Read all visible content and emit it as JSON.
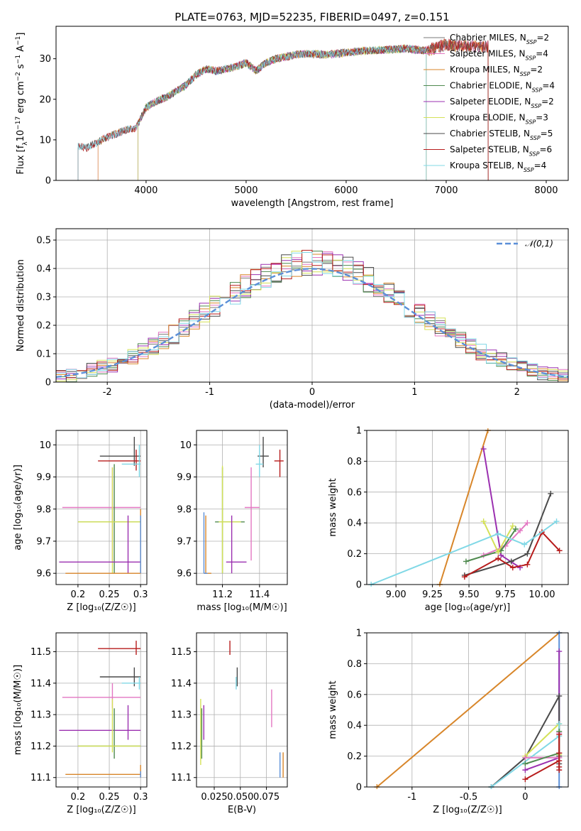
{
  "chart_data": [
    {
      "id": "spectrum",
      "type": "line",
      "title": "PLATE=0763, MJD=52235, FIBERID=0497, z=0.151",
      "xlabel": "wavelength [Angstrom, rest frame]",
      "ylabel": "Flux [f_λ10^{-17} erg cm^{-2} s^{-1} A^{-1}]",
      "xlim": [
        3100,
        8220
      ],
      "ylim": [
        0,
        38
      ],
      "xticks": [
        4000,
        5000,
        6000,
        7000,
        8000
      ],
      "yticks": [
        0,
        10,
        20,
        30
      ],
      "grid": false,
      "legend_position": "top-right",
      "series": [
        {
          "name": "Chabrier MILES, N_SSP=2",
          "color": "#7a7a7a",
          "marker": "+",
          "range": [
            3320,
            7420
          ]
        },
        {
          "name": "Salpeter MILES, N_SSP=4",
          "color": "#e377c2",
          "marker": "+",
          "range": [
            3520,
            7420
          ]
        },
        {
          "name": "Kroupa MILES, N_SSP=2",
          "color": "#d8862a",
          "range": [
            3520,
            7420
          ]
        },
        {
          "name": "Chabrier ELODIE, N_SSP=4",
          "color": "#4f8a4f",
          "range": [
            3920,
            6800
          ]
        },
        {
          "name": "Salpeter ELODIE, N_SSP=2",
          "color": "#9b30b0",
          "range": [
            3920,
            6800
          ]
        },
        {
          "name": "Kroupa ELODIE, N_SSP=3",
          "color": "#d4e157",
          "range": [
            3920,
            6800
          ]
        },
        {
          "name": "Chabrier STELIB, N_SSP=5",
          "color": "#4a4a4a",
          "range": [
            3320,
            7420
          ]
        },
        {
          "name": "Salpeter STELIB, N_SSP=6",
          "color": "#b71c1c",
          "range": [
            3320,
            7420
          ]
        },
        {
          "name": "Kroupa STELIB, N_SSP=4",
          "color": "#80d8e6",
          "range": [
            3320,
            6800
          ]
        }
      ],
      "continuum_key_points": {
        "x": [
          3300,
          3400,
          3500,
          3600,
          3700,
          3800,
          3900,
          3950,
          4000,
          4100,
          4200,
          4300,
          4400,
          4500,
          4600,
          4700,
          4800,
          4900,
          5000,
          5100,
          5200,
          5300,
          5400,
          5500,
          5600,
          5800,
          6000,
          6200,
          6400,
          6600,
          6800,
          7000,
          7200,
          7400,
          7600,
          7800,
          8000
        ],
        "y": [
          8.5,
          8.0,
          9.2,
          10.5,
          11.5,
          12.5,
          13.0,
          15.5,
          18.0,
          19.5,
          20.5,
          22.0,
          23.5,
          26.0,
          27.5,
          27.0,
          27.5,
          28.0,
          29.0,
          27.0,
          29.0,
          30.0,
          30.5,
          31.0,
          31.2,
          31.0,
          31.5,
          32.0,
          32.2,
          32.5,
          32.0,
          33.5,
          33.0,
          33.0,
          32.5,
          31.5,
          30.5
        ]
      }
    },
    {
      "id": "residuals",
      "type": "step",
      "xlabel": "(data-model)/error",
      "ylabel": "Normed distribution",
      "xlim": [
        -2.5,
        2.5
      ],
      "ylim": [
        0,
        0.54
      ],
      "xticks": [
        -2,
        -1,
        0,
        1,
        2
      ],
      "yticks": [
        0.0,
        0.1,
        0.2,
        0.3,
        0.4,
        0.5
      ],
      "grid": true,
      "legend_position": "top-right",
      "reference_curve": {
        "name": "𝒩(0,1)",
        "color": "#5b8fd8",
        "style": "dashed"
      },
      "bin_edges": [
        -2.5,
        -2.4,
        -2.3,
        -2.2,
        -2.1,
        -2.0,
        -1.9,
        -1.8,
        -1.7,
        -1.6,
        -1.5,
        -1.4,
        -1.3,
        -1.2,
        -1.1,
        -1.0,
        -0.9,
        -0.8,
        -0.7,
        -0.6,
        -0.5,
        -0.4,
        -0.3,
        -0.2,
        -0.1,
        0.0,
        0.1,
        0.2,
        0.3,
        0.4,
        0.5,
        0.6,
        0.7,
        0.8,
        0.9,
        1.0,
        1.1,
        1.2,
        1.3,
        1.4,
        1.5,
        1.6,
        1.7,
        1.8,
        1.9,
        2.0,
        2.1,
        2.2,
        2.3,
        2.4,
        2.5
      ],
      "jitter_seeds": [
        1,
        2,
        3,
        4,
        5,
        6,
        7,
        8,
        9
      ]
    },
    {
      "id": "Z-age",
      "type": "errorbar",
      "xlabel": "Z [log₁₀(Z/Z☉)]",
      "ylabel": "age  [log₁₀(age/yr)]",
      "xlim": [
        0.165,
        0.31
      ],
      "ylim": [
        9.565,
        10.045
      ],
      "xticks": [
        0.2,
        0.25,
        0.3
      ],
      "yticks": [
        9.6,
        9.7,
        9.8,
        9.9,
        10.0
      ],
      "grid": true,
      "points": [
        {
          "color": "#4a4a4a",
          "x": 0.29,
          "xerr": [
            0.235,
            0.3
          ],
          "y": 9.965,
          "yerr": [
            9.935,
            10.025
          ]
        },
        {
          "color": "#b71c1c",
          "x": 0.293,
          "xerr": [
            0.232,
            0.3
          ],
          "y": 9.95,
          "yerr": [
            9.92,
            9.985
          ]
        },
        {
          "color": "#80d8e6",
          "x": 0.298,
          "xerr": [
            0.27,
            0.3
          ],
          "y": 9.94,
          "yerr": [
            9.9,
            10.0
          ]
        },
        {
          "color": "#e377c2",
          "x": 0.255,
          "xerr": [
            0.175,
            0.3
          ],
          "y": 9.805,
          "yerr": [
            9.64,
            9.93
          ]
        },
        {
          "color": "#4f8a4f",
          "x": 0.258,
          "xerr": [
            0.2,
            0.3
          ],
          "y": 9.76,
          "yerr": [
            9.6,
            9.94
          ]
        },
        {
          "color": "#d4e157",
          "x": 0.255,
          "xerr": [
            0.2,
            0.3
          ],
          "y": 9.76,
          "yerr": [
            9.6,
            9.93
          ]
        },
        {
          "color": "#9b30b0",
          "x": 0.28,
          "xerr": [
            0.17,
            0.3
          ],
          "y": 9.635,
          "yerr": [
            9.6,
            9.78
          ]
        },
        {
          "color": "#d8862a",
          "x": 0.3,
          "xerr": [
            0.18,
            0.3
          ],
          "y": 9.6,
          "yerr": [
            9.6,
            9.8
          ]
        },
        {
          "color": "#5b8fd8",
          "x": 0.3,
          "xerr": [
            0.3,
            0.3
          ],
          "y": 9.6,
          "yerr": [
            9.6,
            9.78
          ]
        }
      ]
    },
    {
      "id": "mass-age",
      "type": "errorbar",
      "xlabel": "mass [log₁₀(M/M☉)]",
      "xlim": [
        11.06,
        11.55
      ],
      "ylim": [
        9.565,
        10.045
      ],
      "xticks": [
        11.2,
        11.4
      ],
      "yticks": [
        9.6,
        9.7,
        9.8,
        9.9,
        10.0
      ],
      "grid": true,
      "points": [
        {
          "color": "#b71c1c",
          "x": 11.51,
          "xerr": [
            11.48,
            11.53
          ],
          "y": 9.95,
          "yerr": [
            9.9,
            9.985
          ]
        },
        {
          "color": "#4a4a4a",
          "x": 11.42,
          "xerr": [
            11.39,
            11.45
          ],
          "y": 9.965,
          "yerr": [
            9.93,
            10.025
          ]
        },
        {
          "color": "#80d8e6",
          "x": 11.4,
          "xerr": [
            11.38,
            11.42
          ],
          "y": 9.94,
          "yerr": [
            9.9,
            10.0
          ]
        },
        {
          "color": "#e377c2",
          "x": 11.355,
          "xerr": [
            11.32,
            11.4
          ],
          "y": 9.805,
          "yerr": [
            9.64,
            9.93
          ]
        },
        {
          "color": "#4f8a4f",
          "x": 11.2,
          "xerr": [
            11.16,
            11.32
          ],
          "y": 9.76,
          "yerr": [
            9.6,
            9.93
          ]
        },
        {
          "color": "#d4e157",
          "x": 11.2,
          "xerr": [
            11.18,
            11.3
          ],
          "y": 9.76,
          "yerr": [
            9.6,
            9.935
          ]
        },
        {
          "color": "#9b30b0",
          "x": 11.25,
          "xerr": [
            11.22,
            11.33
          ],
          "y": 9.635,
          "yerr": [
            9.6,
            9.78
          ]
        },
        {
          "color": "#d8862a",
          "x": 11.11,
          "xerr": [
            11.1,
            11.14
          ],
          "y": 9.6,
          "yerr": [
            9.6,
            9.78
          ]
        },
        {
          "color": "#5b8fd8",
          "x": 11.1,
          "xerr": [
            11.1,
            11.12
          ],
          "y": 9.6,
          "yerr": [
            9.6,
            9.79
          ]
        }
      ]
    },
    {
      "id": "age-weight",
      "type": "line",
      "xlabel": "age  [log₁₀(age/yr)]",
      "ylabel": "mass weight",
      "xlim": [
        8.8,
        10.18
      ],
      "ylim": [
        0,
        1.0
      ],
      "xticks": [
        9.0,
        9.25,
        9.5,
        9.75,
        10.0
      ],
      "xtick_labels": [
        "9.00",
        "9.25",
        "9.50",
        "9.75",
        "10.00"
      ],
      "yticks": [
        0.0,
        0.2,
        0.4,
        0.6,
        0.8,
        1.0
      ],
      "grid": true,
      "series": [
        {
          "color": "#d8862a",
          "x": [
            9.3,
            9.63
          ],
          "y": [
            0.0,
            1.0
          ]
        },
        {
          "color": "#9b30b0",
          "x": [
            9.6,
            9.72,
            9.85
          ],
          "y": [
            0.88,
            0.19,
            0.11
          ]
        },
        {
          "color": "#e377c2",
          "x": [
            9.6,
            9.75,
            9.85,
            9.9
          ],
          "y": [
            0.19,
            0.25,
            0.35,
            0.4
          ]
        },
        {
          "color": "#4f8a4f",
          "x": [
            9.48,
            9.72,
            9.82
          ],
          "y": [
            0.15,
            0.22,
            0.36
          ]
        },
        {
          "color": "#d4e157",
          "x": [
            9.6,
            9.7,
            9.8
          ],
          "y": [
            0.41,
            0.21,
            0.38
          ]
        },
        {
          "color": "#4a4a4a",
          "x": [
            9.47,
            9.79,
            9.9,
            10.06
          ],
          "y": [
            0.06,
            0.15,
            0.2,
            0.59
          ]
        },
        {
          "color": "#b71c1c",
          "x": [
            9.47,
            9.7,
            9.8,
            9.9,
            10.0,
            10.12
          ],
          "y": [
            0.05,
            0.17,
            0.11,
            0.13,
            0.34,
            0.22
          ]
        },
        {
          "color": "#80d8e6",
          "x": [
            8.83,
            9.7,
            9.88,
            10.1
          ],
          "y": [
            0.0,
            0.33,
            0.26,
            0.41
          ]
        }
      ]
    },
    {
      "id": "Z-mass",
      "type": "errorbar",
      "xlabel": "Z [log₁₀(Z/Z☉)]",
      "ylabel": "mass [log₁₀(M/M☉)]",
      "xlim": [
        0.165,
        0.31
      ],
      "ylim": [
        11.07,
        11.56
      ],
      "xticks": [
        0.2,
        0.25,
        0.3
      ],
      "yticks": [
        11.1,
        11.2,
        11.3,
        11.4,
        11.5
      ],
      "grid": true,
      "points": [
        {
          "color": "#b71c1c",
          "x": 0.293,
          "xerr": [
            0.232,
            0.3
          ],
          "y": 11.51,
          "yerr": [
            11.49,
            11.535
          ]
        },
        {
          "color": "#4a4a4a",
          "x": 0.29,
          "xerr": [
            0.235,
            0.3
          ],
          "y": 11.42,
          "yerr": [
            11.39,
            11.45
          ]
        },
        {
          "color": "#80d8e6",
          "x": 0.298,
          "xerr": [
            0.27,
            0.3
          ],
          "y": 11.4,
          "yerr": [
            11.38,
            11.42
          ]
        },
        {
          "color": "#e377c2",
          "x": 0.255,
          "xerr": [
            0.175,
            0.3
          ],
          "y": 11.355,
          "yerr": [
            11.32,
            11.4
          ]
        },
        {
          "color": "#9b30b0",
          "x": 0.28,
          "xerr": [
            0.17,
            0.3
          ],
          "y": 11.25,
          "yerr": [
            11.22,
            11.33
          ]
        },
        {
          "color": "#4f8a4f",
          "x": 0.258,
          "xerr": [
            0.2,
            0.3
          ],
          "y": 11.2,
          "yerr": [
            11.16,
            11.32
          ]
        },
        {
          "color": "#d4e157",
          "x": 0.255,
          "xerr": [
            0.2,
            0.3
          ],
          "y": 11.2,
          "yerr": [
            11.18,
            11.35
          ]
        },
        {
          "color": "#d8862a",
          "x": 0.3,
          "xerr": [
            0.18,
            0.3
          ],
          "y": 11.11,
          "yerr": [
            11.1,
            11.14
          ]
        },
        {
          "color": "#5b8fd8",
          "x": 0.3,
          "xerr": [
            0.3,
            0.3
          ],
          "y": 11.1,
          "yerr": [
            11.1,
            11.12
          ]
        }
      ]
    },
    {
      "id": "EBV-mass",
      "type": "errorbar",
      "xlabel": "E(B-V)",
      "xlim": [
        0.008,
        0.095
      ],
      "ylim": [
        11.07,
        11.56
      ],
      "xticks": [
        0.025,
        0.05,
        0.075
      ],
      "xtick_labels": [
        "0.025",
        "0.050",
        "0.075"
      ],
      "yticks": [
        11.1,
        11.2,
        11.3,
        11.4,
        11.5
      ],
      "grid": true,
      "points": [
        {
          "color": "#b71c1c",
          "x": 0.04,
          "y": 11.51,
          "yerr": [
            11.49,
            11.535
          ]
        },
        {
          "color": "#4a4a4a",
          "x": 0.047,
          "y": 11.42,
          "yerr": [
            11.39,
            11.45
          ]
        },
        {
          "color": "#80d8e6",
          "x": 0.046,
          "y": 11.4,
          "yerr": [
            11.38,
            11.42
          ]
        },
        {
          "color": "#e377c2",
          "x": 0.08,
          "y": 11.32,
          "yerr": [
            11.26,
            11.38
          ]
        },
        {
          "color": "#9b30b0",
          "x": 0.015,
          "y": 11.27,
          "yerr": [
            11.22,
            11.33
          ]
        },
        {
          "color": "#4f8a4f",
          "x": 0.013,
          "y": 11.2,
          "yerr": [
            11.16,
            11.32
          ]
        },
        {
          "color": "#d4e157",
          "x": 0.012,
          "y": 11.2,
          "yerr": [
            11.14,
            11.35
          ]
        },
        {
          "color": "#d8862a",
          "x": 0.091,
          "y": 11.14,
          "yerr": [
            11.1,
            11.18
          ]
        },
        {
          "color": "#5b8fd8",
          "x": 0.088,
          "y": 11.14,
          "yerr": [
            11.1,
            11.18
          ]
        }
      ]
    },
    {
      "id": "Z-weight",
      "type": "line",
      "xlabel": "Z [log₁₀(Z/Z☉)]",
      "ylabel": "mass weight",
      "xlim": [
        -1.4,
        0.38
      ],
      "ylim": [
        0,
        1.0
      ],
      "xticks": [
        -1.0,
        -0.5,
        0.0
      ],
      "yticks": [
        0.0,
        0.2,
        0.4,
        0.6,
        0.8,
        1.0
      ],
      "grid": true,
      "series": [
        {
          "color": "#d8862a",
          "x": [
            -1.31,
            0.3
          ],
          "y": [
            0.0,
            1.0
          ]
        },
        {
          "color": "#5b8fd8",
          "x": [
            0.3,
            0.3
          ],
          "y": [
            0.0,
            1.0
          ]
        },
        {
          "color": "#9b30b0",
          "x": [
            0.0,
            0.3,
            0.3
          ],
          "y": [
            0.11,
            0.19,
            0.88
          ]
        },
        {
          "color": "#4a4a4a",
          "x": [
            -0.3,
            0.0,
            0.3,
            0.3,
            0.3
          ],
          "y": [
            0.0,
            0.19,
            0.59,
            0.2,
            0.15
          ]
        },
        {
          "color": "#d4e157",
          "x": [
            0.0,
            0.3,
            0.3
          ],
          "y": [
            0.2,
            0.41,
            0.21
          ]
        },
        {
          "color": "#80d8e6",
          "x": [
            -0.3,
            0.3,
            0.3
          ],
          "y": [
            0.0,
            0.33,
            0.41
          ]
        },
        {
          "color": "#e377c2",
          "x": [
            0.0,
            0.3,
            0.3
          ],
          "y": [
            0.19,
            0.19,
            0.35
          ]
        },
        {
          "color": "#4f8a4f",
          "x": [
            0.0,
            0.3,
            0.3
          ],
          "y": [
            0.15,
            0.22,
            0.36
          ]
        },
        {
          "color": "#b71c1c",
          "x": [
            0.0,
            0.3,
            0.3,
            0.3,
            0.3,
            0.3
          ],
          "y": [
            0.05,
            0.17,
            0.11,
            0.13,
            0.22,
            0.34
          ]
        }
      ]
    }
  ]
}
